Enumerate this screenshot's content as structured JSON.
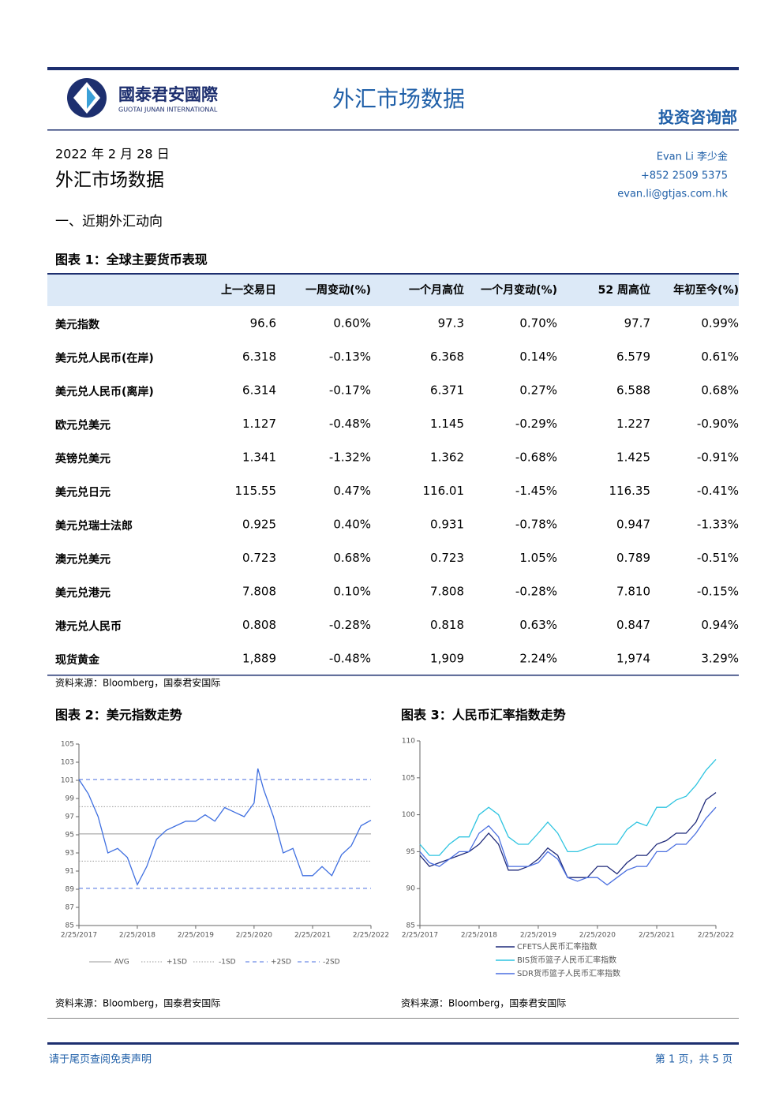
{
  "header": {
    "company_cn": "國泰君安國際",
    "company_en": "GUOTAI JUNAN INTERNATIONAL",
    "title": "外汇市场数据",
    "department": "投资咨询部"
  },
  "report": {
    "date": "2022 年 2 月 28 日",
    "title": "外汇市场数据",
    "author": "Evan Li 李少金",
    "phone": "+852 2509 5375",
    "email": "evan.li@gtjas.com.hk",
    "section": "一、近期外汇动向"
  },
  "table": {
    "title": "图表 1：全球主要货币表现",
    "headers": [
      "上一交易日",
      "一周变动(%)",
      "一个月高位",
      "一个月变动(%)",
      "52 周高位",
      "年初至今(%)"
    ],
    "rows": [
      {
        "label": "美元指数",
        "values": [
          "96.6",
          "0.60%",
          "97.3",
          "0.70%",
          "97.7",
          "0.99%"
        ]
      },
      {
        "label": "美元兑人民币(在岸)",
        "values": [
          "6.318",
          "-0.13%",
          "6.368",
          "0.14%",
          "6.579",
          "0.61%"
        ]
      },
      {
        "label": "美元兑人民币(离岸)",
        "values": [
          "6.314",
          "-0.17%",
          "6.371",
          "0.27%",
          "6.588",
          "0.68%"
        ]
      },
      {
        "label": "欧元兑美元",
        "values": [
          "1.127",
          "-0.48%",
          "1.145",
          "-0.29%",
          "1.227",
          "-0.90%"
        ]
      },
      {
        "label": "英镑兑美元",
        "values": [
          "1.341",
          "-1.32%",
          "1.362",
          "-0.68%",
          "1.425",
          "-0.91%"
        ]
      },
      {
        "label": "美元兑日元",
        "values": [
          "115.55",
          "0.47%",
          "116.01",
          "-1.45%",
          "116.35",
          "-0.41%"
        ]
      },
      {
        "label": "美元兑瑞士法郎",
        "values": [
          "0.925",
          "0.40%",
          "0.931",
          "-0.78%",
          "0.947",
          "-1.33%"
        ]
      },
      {
        "label": "澳元兑美元",
        "values": [
          "0.723",
          "0.68%",
          "0.723",
          "1.05%",
          "0.789",
          "-0.51%"
        ]
      },
      {
        "label": "美元兑港元",
        "values": [
          "7.808",
          "0.10%",
          "7.808",
          "-0.28%",
          "7.810",
          "-0.15%"
        ]
      },
      {
        "label": "港元兑人民币",
        "values": [
          "0.808",
          "-0.28%",
          "0.818",
          "0.63%",
          "0.847",
          "0.94%"
        ]
      },
      {
        "label": "现货黄金",
        "values": [
          "1,889",
          "-0.48%",
          "1,909",
          "2.24%",
          "1,974",
          "3.29%"
        ]
      }
    ],
    "source": "资料来源：Bloomberg，国泰君安国际"
  },
  "chart_data": [
    {
      "type": "line",
      "title": "图表 2：美元指数走势",
      "source": "资料来源：Bloomberg，国泰君安国际",
      "x": [
        "2/25/2017",
        "4/25/2017",
        "6/25/2017",
        "8/25/2017",
        "10/25/2017",
        "12/25/2017",
        "2/25/2018",
        "4/25/2018",
        "6/25/2018",
        "8/25/2018",
        "10/25/2018",
        "12/25/2018",
        "2/25/2019",
        "4/25/2019",
        "6/25/2019",
        "8/25/2019",
        "10/25/2019",
        "12/25/2019",
        "2/25/2020",
        "3/20/2020",
        "4/25/2020",
        "6/25/2020",
        "8/25/2020",
        "10/25/2020",
        "12/25/2020",
        "2/25/2021",
        "4/25/2021",
        "6/25/2021",
        "8/25/2021",
        "10/25/2021",
        "12/25/2021",
        "2/25/2022"
      ],
      "series": [
        {
          "color": "#3f6fe0",
          "values": [
            101.1,
            99.5,
            97.0,
            93.0,
            93.5,
            92.5,
            89.5,
            91.5,
            94.5,
            95.5,
            96.0,
            96.5,
            96.5,
            97.2,
            96.5,
            98.0,
            97.5,
            97.0,
            98.5,
            102.3,
            100.0,
            97.0,
            93.0,
            93.5,
            90.5,
            90.5,
            91.5,
            90.5,
            92.8,
            93.8,
            96.0,
            96.6
          ]
        }
      ],
      "reference_lines": [
        {
          "name": "AVG",
          "value": 95.1,
          "color": "#999999",
          "style": "solid"
        },
        {
          "name": "+1SD",
          "value": 98.1,
          "color": "#999999",
          "style": "dotted"
        },
        {
          "name": "-1SD",
          "value": 92.1,
          "color": "#999999",
          "style": "dotted"
        },
        {
          "name": "+2SD",
          "value": 101.1,
          "color": "#4a6fe0",
          "style": "dashed"
        },
        {
          "name": "-2SD",
          "value": 89.1,
          "color": "#4a6fe0",
          "style": "dashed"
        }
      ],
      "xlim": [
        "2/25/2017",
        "2/25/2022"
      ],
      "xticks": [
        "2/25/2017",
        "2/25/2018",
        "2/25/2019",
        "2/25/2020",
        "2/25/2021",
        "2/25/2022"
      ],
      "ylim": [
        85,
        105
      ],
      "yticks": [
        85,
        87,
        89,
        91,
        93,
        95,
        97,
        99,
        101,
        103,
        105
      ]
    },
    {
      "type": "line",
      "title": "图表 3：人民币汇率指数走势",
      "source": "资料来源：Bloomberg，国泰君安国际",
      "x": [
        "2/25/2017",
        "4/25/2017",
        "6/25/2017",
        "8/25/2017",
        "10/25/2017",
        "12/25/2017",
        "2/25/2018",
        "4/25/2018",
        "6/25/2018",
        "8/25/2018",
        "10/25/2018",
        "12/25/2018",
        "2/25/2019",
        "4/25/2019",
        "6/25/2019",
        "8/25/2019",
        "10/25/2019",
        "12/25/2019",
        "2/25/2020",
        "4/25/2020",
        "6/25/2020",
        "8/25/2020",
        "10/25/2020",
        "12/25/2020",
        "2/25/2021",
        "4/25/2021",
        "6/25/2021",
        "8/25/2021",
        "10/25/2021",
        "12/25/2021",
        "2/25/2022"
      ],
      "series": [
        {
          "name": "CFETS人民币汇率指数",
          "color": "#1f2a7a",
          "values": [
            94.5,
            93.0,
            93.5,
            94.0,
            94.5,
            95.0,
            96.0,
            97.5,
            96.0,
            92.5,
            92.5,
            93.0,
            94.0,
            95.5,
            94.5,
            91.5,
            91.5,
            91.5,
            93.0,
            93.0,
            92.0,
            93.5,
            94.5,
            94.5,
            96.0,
            96.5,
            97.5,
            97.5,
            99.0,
            102.0,
            103.0
          ]
        },
        {
          "name": "BIS货币篮子人民币汇率指数",
          "color": "#2ec4e0",
          "values": [
            96.0,
            94.5,
            94.5,
            96.0,
            97.0,
            97.0,
            100.0,
            101.0,
            100.0,
            97.0,
            96.0,
            96.0,
            97.5,
            99.0,
            97.5,
            95.0,
            95.0,
            95.5,
            96.0,
            96.0,
            96.0,
            98.0,
            99.0,
            98.5,
            101.0,
            101.0,
            102.0,
            102.5,
            104.0,
            106.0,
            107.5
          ]
        },
        {
          "name": "SDR货币篮子人民币汇率指数",
          "color": "#4a6fe0",
          "values": [
            95.0,
            93.5,
            93.0,
            94.0,
            95.0,
            95.0,
            97.5,
            98.5,
            97.0,
            93.0,
            93.0,
            93.0,
            93.5,
            95.0,
            94.0,
            91.5,
            91.0,
            91.5,
            91.5,
            90.5,
            91.5,
            92.5,
            93.0,
            93.0,
            95.0,
            95.0,
            96.0,
            96.0,
            97.5,
            99.5,
            101.0
          ]
        }
      ],
      "xlim": [
        "2/25/2017",
        "2/25/2022"
      ],
      "xticks": [
        "2/25/2017",
        "2/25/2018",
        "2/25/2019",
        "2/25/2020",
        "2/25/2021",
        "2/25/2022"
      ],
      "ylim": [
        85,
        110
      ],
      "yticks": [
        85,
        90,
        95,
        100,
        105,
        110
      ]
    }
  ],
  "footer": {
    "disclaimer": "请于尾页查阅免责声明",
    "page": "第 1 页，共 5 页"
  }
}
